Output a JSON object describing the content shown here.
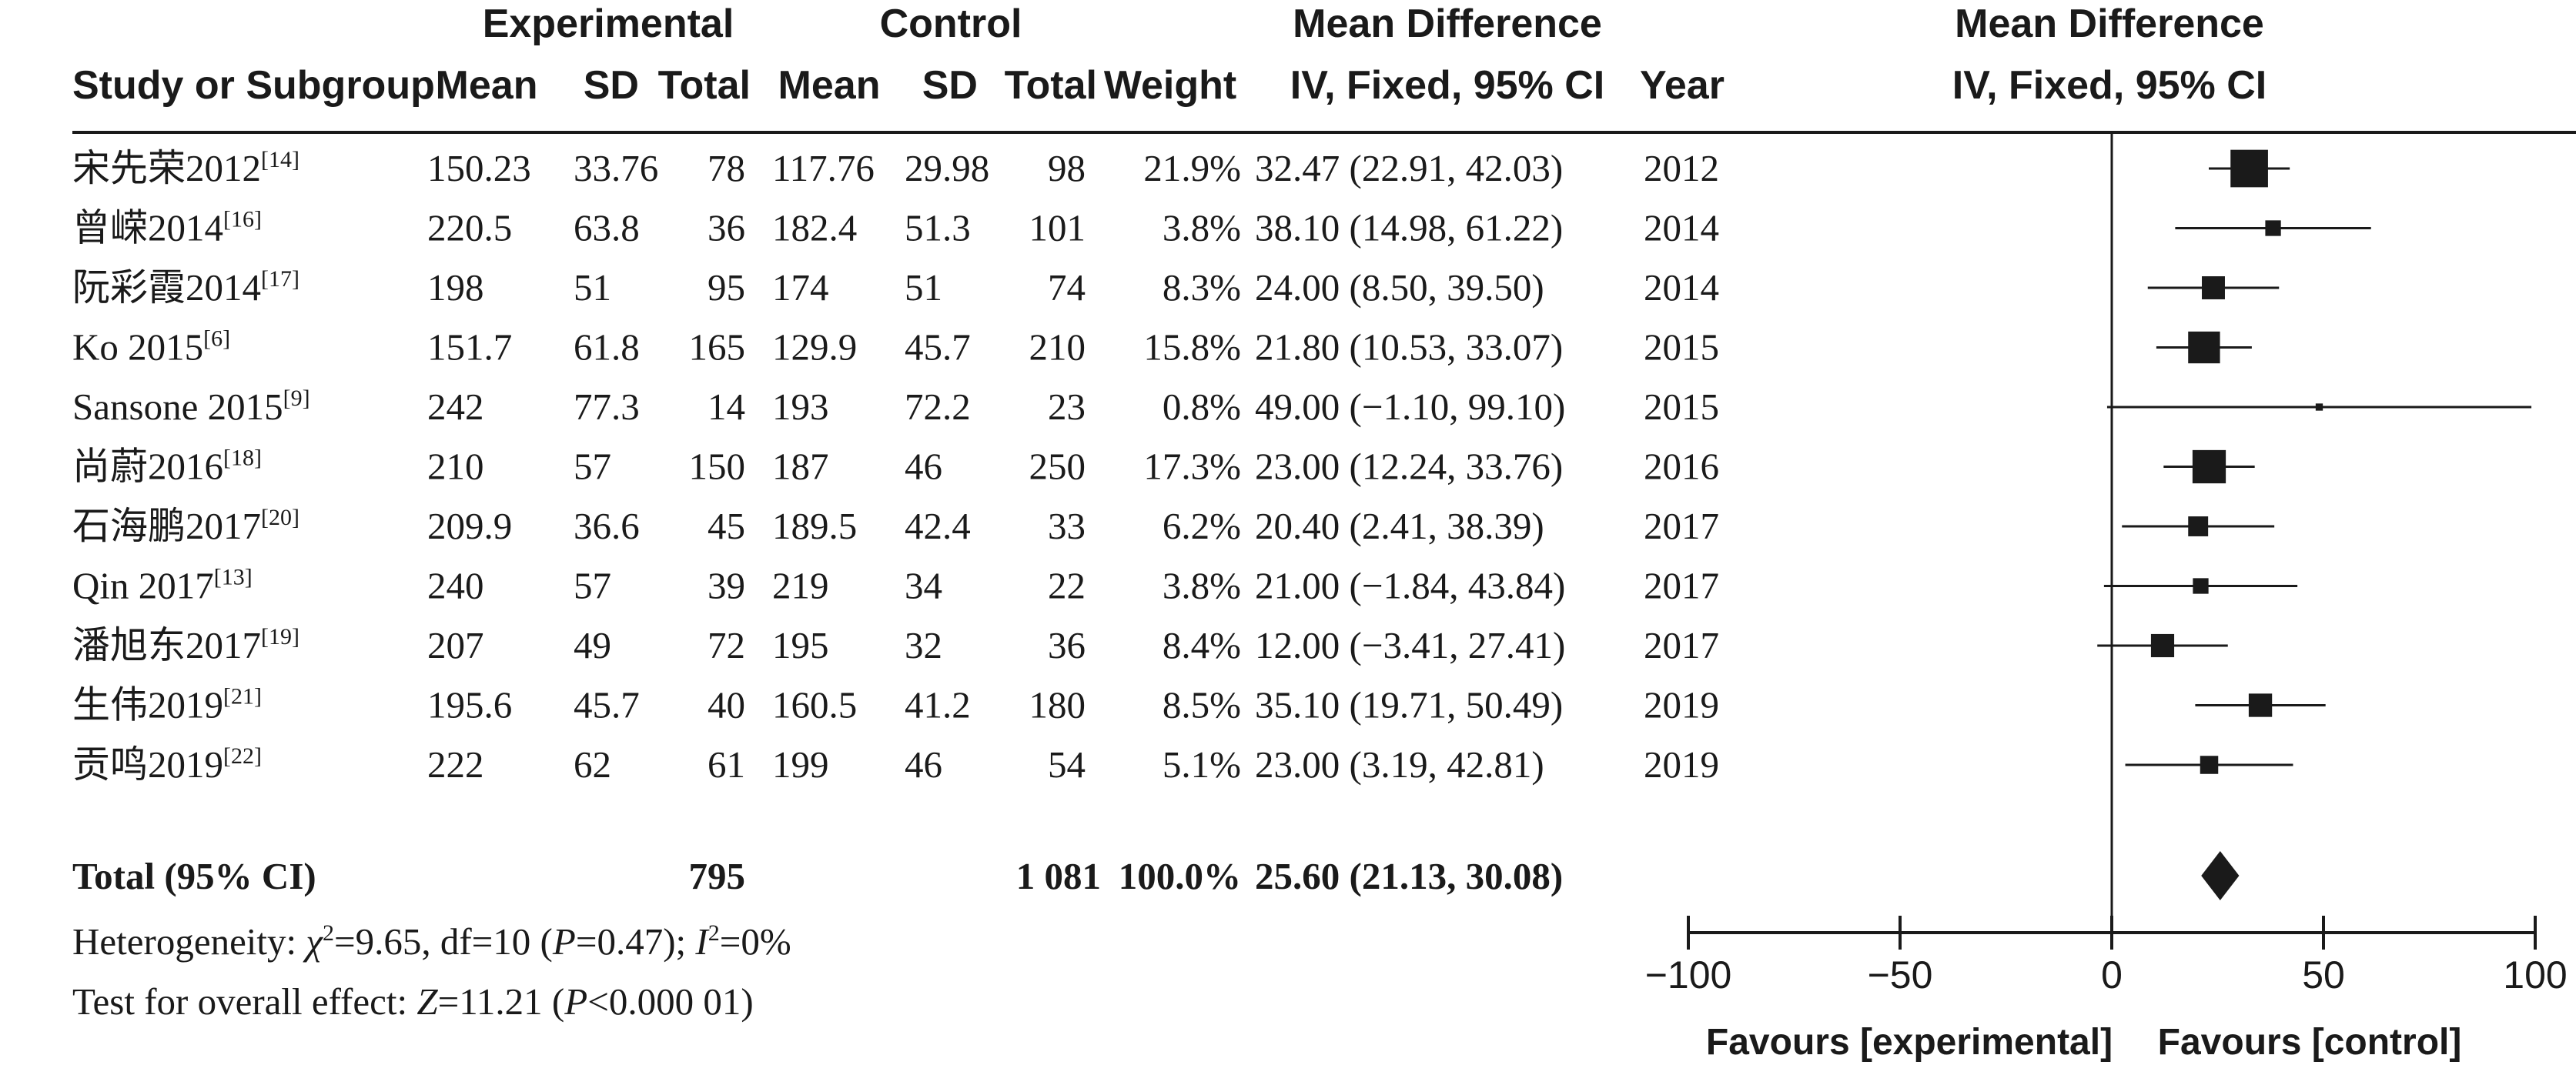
{
  "headers": {
    "group_experimental": "Experimental",
    "group_control": "Control",
    "group_md": "Mean Difference",
    "group_md_plot": "Mean Difference",
    "study": "Study or Subgroup",
    "mean_e": "Mean",
    "sd_e": "SD",
    "total_e": "Total",
    "mean_c": "Mean",
    "sd_c": "SD",
    "total_c": "Total",
    "weight": "Weight",
    "ci": "IV, Fixed, 95% CI",
    "year": "Year",
    "ci_plot": "IV, Fixed, 95% CI"
  },
  "chart_data": {
    "type": "forest",
    "x_axis": {
      "range": [
        -100,
        100
      ],
      "ticks": [
        -100,
        -50,
        0,
        50,
        100
      ],
      "tick_labels": [
        "−100",
        "−50",
        "0",
        "50",
        "100"
      ],
      "favours_left": "Favours [experimental]",
      "favours_right": "Favours [control]"
    },
    "studies": [
      {
        "name": "宋先荣2012",
        "ref": "[14]",
        "mean_e": "150.23",
        "sd_e": "33.76",
        "total_e": "78",
        "mean_c": "117.76",
        "sd_c": "29.98",
        "total_c": "98",
        "weight_text": "21.9%",
        "ci_text": "32.47 (22.91, 42.03)",
        "year": "2012",
        "md": 32.47,
        "lo": 22.91,
        "hi": 42.03,
        "weight": 21.9
      },
      {
        "name": "曾嵘2014",
        "ref": "[16]",
        "mean_e": "220.5",
        "sd_e": "63.8",
        "total_e": "36",
        "mean_c": "182.4",
        "sd_c": "51.3",
        "total_c": "101",
        "weight_text": "3.8%",
        "ci_text": "38.10 (14.98, 61.22)",
        "year": "2014",
        "md": 38.1,
        "lo": 14.98,
        "hi": 61.22,
        "weight": 3.8
      },
      {
        "name": "阮彩霞2014",
        "ref": "[17]",
        "mean_e": "198",
        "sd_e": "51",
        "total_e": "95",
        "mean_c": "174",
        "sd_c": "51",
        "total_c": "74",
        "weight_text": "8.3%",
        "ci_text": "24.00 (8.50, 39.50)",
        "year": "2014",
        "md": 24.0,
        "lo": 8.5,
        "hi": 39.5,
        "weight": 8.3
      },
      {
        "name": "Ko 2015",
        "ref": "[6]",
        "mean_e": "151.7",
        "sd_e": "61.8",
        "total_e": "165",
        "mean_c": "129.9",
        "sd_c": "45.7",
        "total_c": "210",
        "weight_text": "15.8%",
        "ci_text": "21.80 (10.53, 33.07)",
        "year": "2015",
        "md": 21.8,
        "lo": 10.53,
        "hi": 33.07,
        "weight": 15.8
      },
      {
        "name": "Sansone 2015",
        "ref": "[9]",
        "mean_e": "242",
        "sd_e": "77.3",
        "total_e": "14",
        "mean_c": "193",
        "sd_c": "72.2",
        "total_c": "23",
        "weight_text": "0.8%",
        "ci_text": "49.00 (−1.10, 99.10)",
        "year": "2015",
        "md": 49.0,
        "lo": -1.1,
        "hi": 99.1,
        "weight": 0.8
      },
      {
        "name": "尚蔚2016",
        "ref": "[18]",
        "mean_e": "210",
        "sd_e": "57",
        "total_e": "150",
        "mean_c": "187",
        "sd_c": "46",
        "total_c": "250",
        "weight_text": "17.3%",
        "ci_text": "23.00 (12.24, 33.76)",
        "year": "2016",
        "md": 23.0,
        "lo": 12.24,
        "hi": 33.76,
        "weight": 17.3
      },
      {
        "name": "石海鹏2017",
        "ref": "[20]",
        "mean_e": "209.9",
        "sd_e": "36.6",
        "total_e": "45",
        "mean_c": "189.5",
        "sd_c": "42.4",
        "total_c": "33",
        "weight_text": "6.2%",
        "ci_text": "20.40 (2.41, 38.39)",
        "year": "2017",
        "md": 20.4,
        "lo": 2.41,
        "hi": 38.39,
        "weight": 6.2
      },
      {
        "name": "Qin 2017",
        "ref": "[13]",
        "mean_e": "240",
        "sd_e": "57",
        "total_e": "39",
        "mean_c": "219",
        "sd_c": "34",
        "total_c": "22",
        "weight_text": "3.8%",
        "ci_text": "21.00 (−1.84, 43.84)",
        "year": "2017",
        "md": 21.0,
        "lo": -1.84,
        "hi": 43.84,
        "weight": 3.8
      },
      {
        "name": "潘旭东2017",
        "ref": "[19]",
        "mean_e": "207",
        "sd_e": "49",
        "total_e": "72",
        "mean_c": "195",
        "sd_c": "32",
        "total_c": "36",
        "weight_text": "8.4%",
        "ci_text": "12.00 (−3.41, 27.41)",
        "year": "2017",
        "md": 12.0,
        "lo": -3.41,
        "hi": 27.41,
        "weight": 8.4
      },
      {
        "name": "生伟2019",
        "ref": "[21]",
        "mean_e": "195.6",
        "sd_e": "45.7",
        "total_e": "40",
        "mean_c": "160.5",
        "sd_c": "41.2",
        "total_c": "180",
        "weight_text": "8.5%",
        "ci_text": "35.10 (19.71, 50.49)",
        "year": "2019",
        "md": 35.1,
        "lo": 19.71,
        "hi": 50.49,
        "weight": 8.5
      },
      {
        "name": "贡鸣2019",
        "ref": "[22]",
        "mean_e": "222",
        "sd_e": "62",
        "total_e": "61",
        "mean_c": "199",
        "sd_c": "46",
        "total_c": "54",
        "weight_text": "5.1%",
        "ci_text": "23.00 (3.19, 42.81)",
        "year": "2019",
        "md": 23.0,
        "lo": 3.19,
        "hi": 42.81,
        "weight": 5.1
      }
    ],
    "total": {
      "label": "Total (95% CI)",
      "total_e": "795",
      "total_c": "1 081",
      "weight_text": "100.0%",
      "ci_text": "25.60 (21.13, 30.08)",
      "md": 25.6,
      "lo": 21.13,
      "hi": 30.08
    },
    "heterogeneity": {
      "prefix": "Heterogeneity: ",
      "chi_sym": "χ",
      "chi_exp": "2",
      "chi_val": "=9.65, df=10 (",
      "p_sym": "P",
      "p_val": "=0.47); ",
      "i_sym": "I",
      "i_exp": "2",
      "i_val": "=0%"
    },
    "overall_effect": {
      "prefix": "Test for overall effect: ",
      "z_sym": "Z",
      "z_val": "=11.21 (",
      "p_sym": "P",
      "p_val": "<0.000 01)"
    }
  }
}
